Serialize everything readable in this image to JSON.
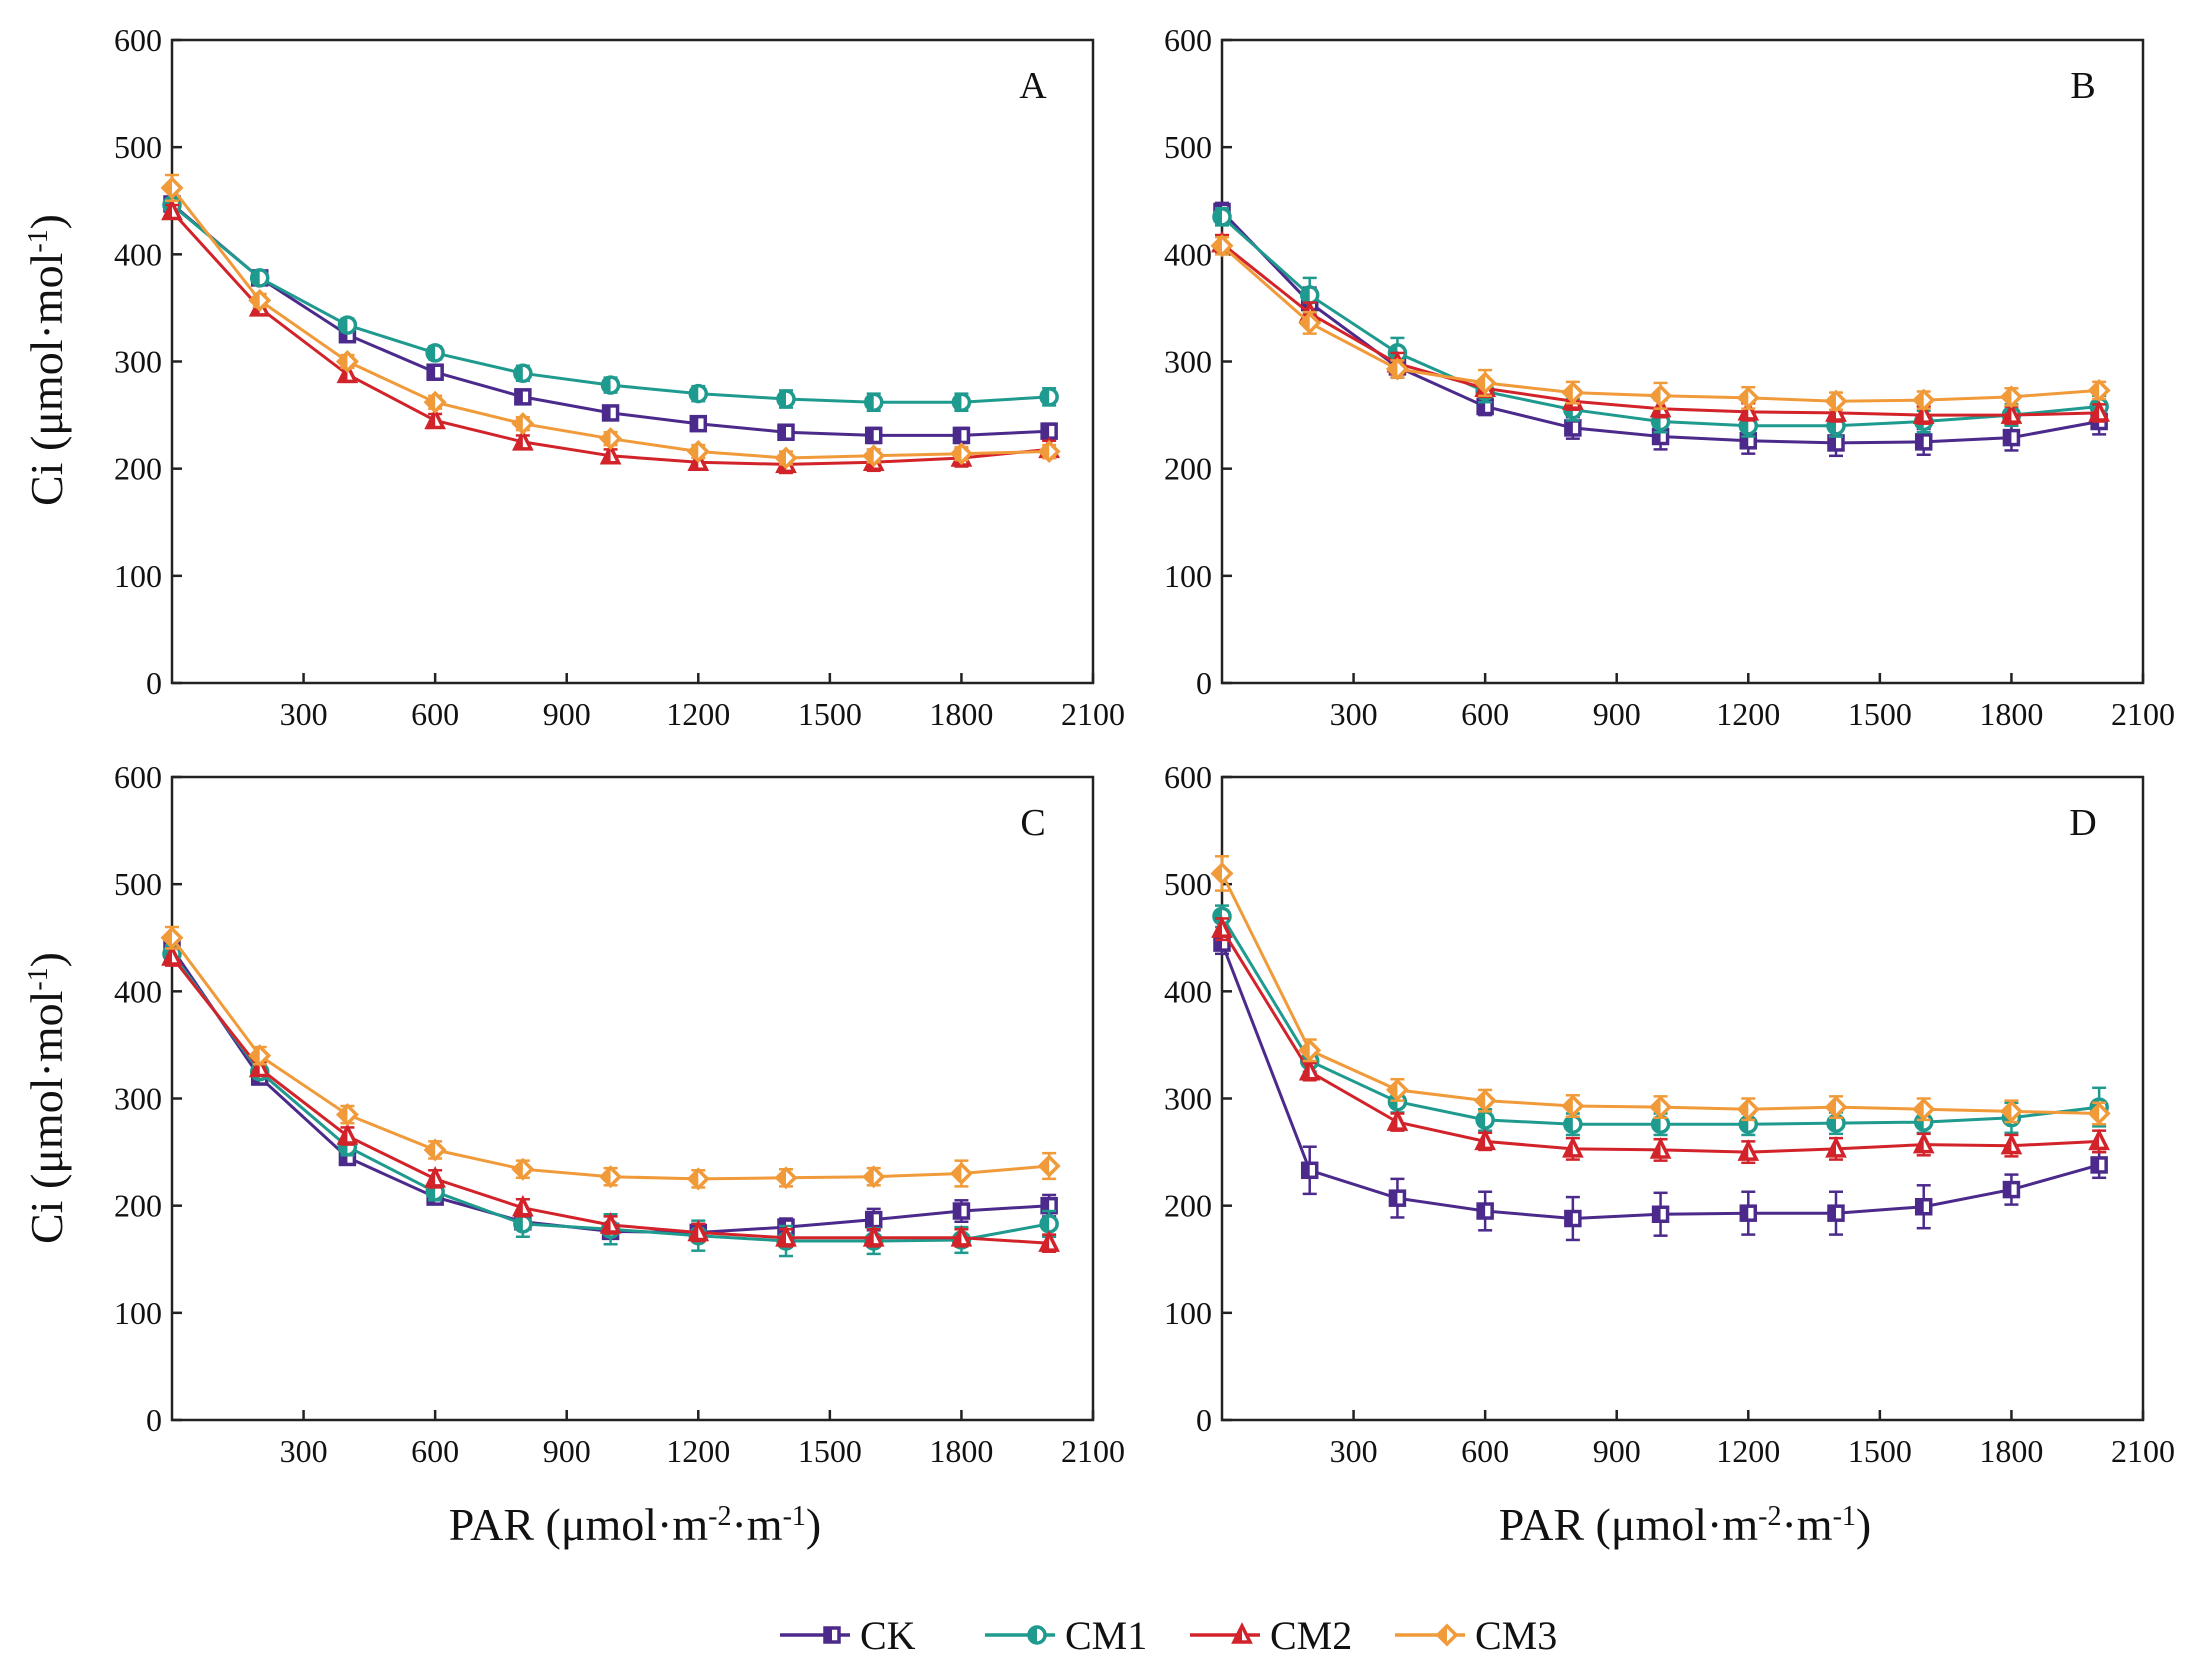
{
  "figure": {
    "y_axis_title": "Ci (μmol·mol",
    "y_axis_title_sup": "-1",
    "y_axis_title_end": ")",
    "x_axis_title": "PAR (μmol·m",
    "x_axis_title_sup1": "-2",
    "x_axis_title_mid": "·m",
    "x_axis_title_sup2": "-1",
    "x_axis_title_end": ")"
  },
  "legend": [
    {
      "name": "CK",
      "color": "#4b2a8c",
      "marker": "square"
    },
    {
      "name": "CM1",
      "color": "#1f9a8e",
      "marker": "circle"
    },
    {
      "name": "CM2",
      "color": "#d2232a",
      "marker": "triangle"
    },
    {
      "name": "CM3",
      "color": "#f09a3a",
      "marker": "diamond"
    }
  ],
  "chart_data": [
    {
      "type": "line",
      "panel": "A",
      "x": [
        0,
        200,
        400,
        600,
        800,
        1000,
        1200,
        1400,
        1600,
        1800,
        2000
      ],
      "xlim": [
        0,
        2100
      ],
      "ylim": [
        0,
        600
      ],
      "xticks": [
        300,
        600,
        900,
        1200,
        1500,
        1800,
        2100
      ],
      "yticks": [
        0,
        100,
        200,
        300,
        400,
        500,
        600
      ],
      "series": [
        {
          "name": "CK",
          "values": [
            447,
            378,
            325,
            290,
            267,
            252,
            242,
            234,
            231,
            231,
            235
          ],
          "err": [
            5,
            5,
            6,
            6,
            6,
            6,
            6,
            6,
            7,
            7,
            7
          ]
        },
        {
          "name": "CM1",
          "values": [
            446,
            378,
            334,
            308,
            289,
            278,
            270,
            265,
            262,
            262,
            267
          ],
          "err": [
            5,
            5,
            6,
            6,
            7,
            7,
            7,
            8,
            8,
            8,
            8
          ]
        },
        {
          "name": "CM2",
          "values": [
            440,
            350,
            288,
            245,
            225,
            212,
            206,
            204,
            206,
            210,
            218
          ],
          "err": [
            6,
            6,
            7,
            6,
            6,
            6,
            7,
            8,
            8,
            8,
            8
          ]
        },
        {
          "name": "CM3",
          "values": [
            462,
            357,
            300,
            262,
            242,
            228,
            216,
            210,
            212,
            214,
            216
          ],
          "err": [
            12,
            6,
            6,
            6,
            6,
            6,
            6,
            6,
            6,
            6,
            6
          ]
        }
      ]
    },
    {
      "type": "line",
      "panel": "B",
      "x": [
        0,
        200,
        400,
        600,
        800,
        1000,
        1200,
        1400,
        1600,
        1800,
        2000
      ],
      "xlim": [
        0,
        2100
      ],
      "ylim": [
        0,
        600
      ],
      "xticks": [
        300,
        600,
        900,
        1200,
        1500,
        1800,
        2100
      ],
      "yticks": [
        0,
        100,
        200,
        300,
        400,
        500,
        600
      ],
      "series": [
        {
          "name": "CK",
          "values": [
            440,
            355,
            295,
            258,
            238,
            230,
            226,
            224,
            225,
            229,
            244
          ],
          "err": [
            8,
            14,
            10,
            8,
            10,
            12,
            12,
            12,
            12,
            12,
            12
          ]
        },
        {
          "name": "CM1",
          "values": [
            435,
            362,
            308,
            272,
            255,
            244,
            240,
            240,
            244,
            250,
            258
          ],
          "err": [
            8,
            16,
            14,
            10,
            10,
            10,
            10,
            10,
            10,
            10,
            10
          ]
        },
        {
          "name": "CM2",
          "values": [
            410,
            345,
            298,
            275,
            263,
            256,
            253,
            252,
            250,
            250,
            252
          ],
          "err": [
            8,
            10,
            10,
            8,
            8,
            8,
            8,
            8,
            8,
            8,
            8
          ]
        },
        {
          "name": "CM3",
          "values": [
            408,
            336,
            293,
            280,
            271,
            268,
            266,
            263,
            264,
            267,
            273
          ],
          "err": [
            8,
            10,
            8,
            12,
            10,
            12,
            10,
            8,
            8,
            8,
            8
          ]
        }
      ]
    },
    {
      "type": "line",
      "panel": "C",
      "x": [
        0,
        200,
        400,
        600,
        800,
        1000,
        1200,
        1400,
        1600,
        1800,
        2000
      ],
      "xlim": [
        0,
        2100
      ],
      "ylim": [
        0,
        600
      ],
      "xticks": [
        300,
        600,
        900,
        1200,
        1500,
        1800,
        2100
      ],
      "yticks": [
        0,
        100,
        200,
        300,
        400,
        500,
        600
      ],
      "series": [
        {
          "name": "CK",
          "values": [
            440,
            320,
            245,
            208,
            185,
            176,
            175,
            180,
            187,
            195,
            200
          ],
          "err": [
            8,
            6,
            6,
            6,
            6,
            6,
            8,
            8,
            10,
            10,
            10
          ]
        },
        {
          "name": "CM1",
          "values": [
            435,
            325,
            255,
            213,
            183,
            178,
            172,
            167,
            167,
            168,
            183
          ],
          "err": [
            8,
            6,
            8,
            8,
            12,
            14,
            14,
            14,
            12,
            12,
            12
          ]
        },
        {
          "name": "CM2",
          "values": [
            432,
            328,
            265,
            225,
            198,
            182,
            175,
            170,
            170,
            170,
            165
          ],
          "err": [
            8,
            6,
            8,
            8,
            8,
            8,
            8,
            8,
            8,
            8,
            8
          ]
        },
        {
          "name": "CM3",
          "values": [
            450,
            340,
            285,
            252,
            234,
            227,
            225,
            226,
            227,
            230,
            237
          ],
          "err": [
            10,
            8,
            8,
            8,
            8,
            8,
            8,
            8,
            8,
            12,
            12
          ]
        }
      ]
    },
    {
      "type": "line",
      "panel": "D",
      "x": [
        0,
        200,
        400,
        600,
        800,
        1000,
        1200,
        1400,
        1600,
        1800,
        2000
      ],
      "xlim": [
        0,
        2100
      ],
      "ylim": [
        0,
        600
      ],
      "xticks": [
        300,
        600,
        900,
        1200,
        1500,
        1800,
        2100
      ],
      "yticks": [
        0,
        100,
        200,
        300,
        400,
        500,
        600
      ],
      "series": [
        {
          "name": "CK",
          "values": [
            445,
            233,
            207,
            195,
            188,
            192,
            193,
            193,
            199,
            215,
            238
          ],
          "err": [
            10,
            22,
            18,
            18,
            20,
            20,
            20,
            20,
            20,
            14,
            12
          ]
        },
        {
          "name": "CM1",
          "values": [
            470,
            335,
            297,
            280,
            276,
            276,
            276,
            277,
            278,
            282,
            292
          ],
          "err": [
            10,
            10,
            10,
            10,
            10,
            10,
            10,
            10,
            10,
            14,
            18
          ]
        },
        {
          "name": "CM2",
          "values": [
            458,
            325,
            278,
            260,
            253,
            252,
            250,
            253,
            257,
            256,
            260
          ],
          "err": [
            10,
            8,
            8,
            8,
            10,
            10,
            10,
            10,
            10,
            10,
            10
          ]
        },
        {
          "name": "CM3",
          "values": [
            510,
            345,
            308,
            298,
            293,
            292,
            290,
            292,
            290,
            288,
            286
          ],
          "err": [
            16,
            10,
            10,
            10,
            10,
            10,
            10,
            10,
            10,
            10,
            10
          ]
        }
      ]
    }
  ]
}
